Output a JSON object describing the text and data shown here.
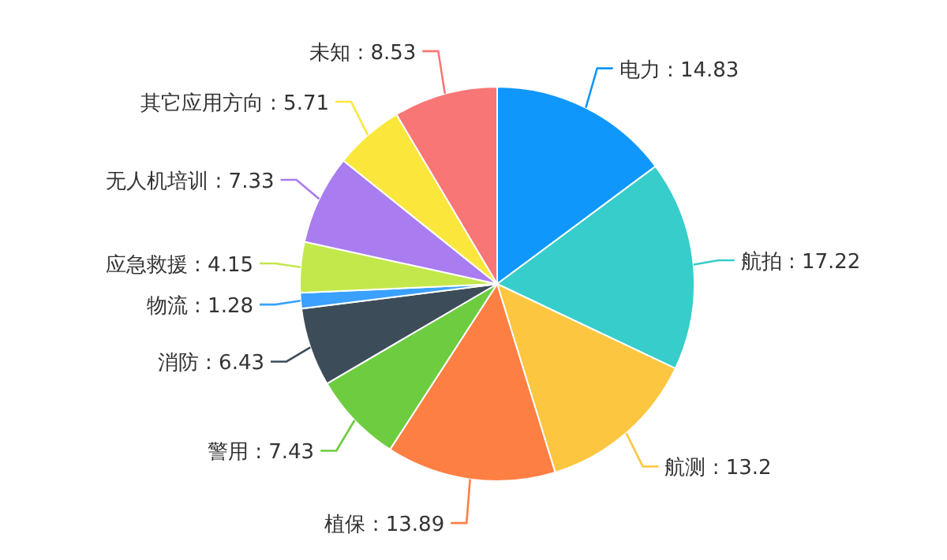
{
  "chart_data": {
    "type": "pie",
    "categories": [
      "电力",
      "航拍",
      "航测",
      "植保",
      "警用",
      "消防",
      "物流",
      "应急救援",
      "无人机培训",
      "其它应用方向",
      "未知"
    ],
    "values": [
      14.83,
      17.22,
      13.2,
      13.89,
      7.43,
      6.43,
      1.28,
      4.15,
      7.33,
      5.71,
      8.53
    ],
    "value_labels": [
      ": 14.83",
      ": 17.22",
      ": 13.2",
      ": 13.89",
      ": 7.43",
      ": 6.43",
      ": 1.28",
      ": 4.15",
      ": 7.33",
      ": 5.71",
      ": 8.53"
    ],
    "colors": [
      "#0f97fb",
      "#37cdcb",
      "#fdc640",
      "#fe7f43",
      "#6dcc40",
      "#3d4c59",
      "#3aa1ff",
      "#c3e84c",
      "#a97cf0",
      "#fbe73c",
      "#f87676"
    ]
  }
}
